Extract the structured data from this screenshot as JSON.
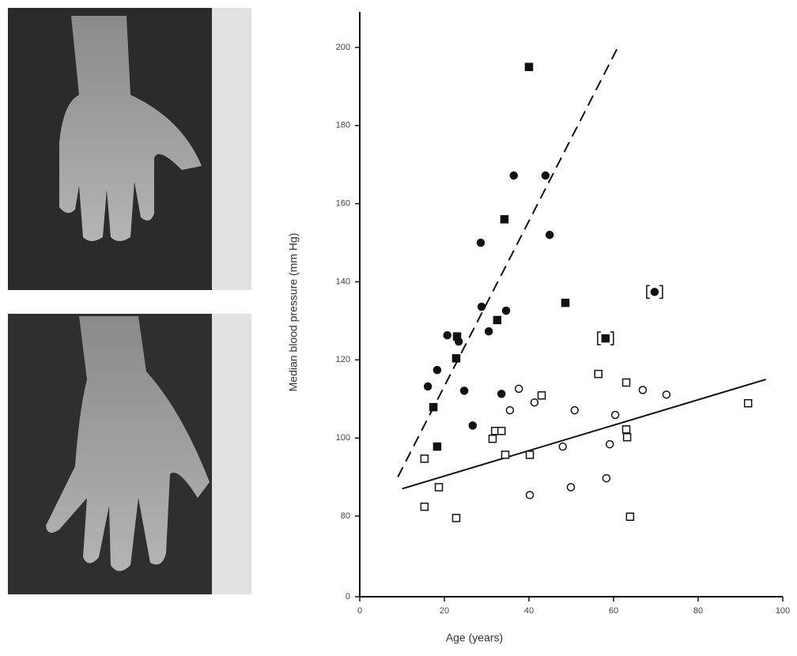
{
  "chart_data": {
    "type": "scatter",
    "x_label": "Age (years)",
    "y_label": "Median blood pressure (mm Hg)",
    "xlim": [
      0,
      100
    ],
    "xticks": [
      0,
      20,
      40,
      60,
      80,
      100
    ],
    "ylim": [
      0,
      200
    ],
    "yticks": [
      0,
      80,
      100,
      120,
      140,
      160,
      180,
      200
    ],
    "y_axis_break": [
      0,
      80
    ],
    "color": "#111111",
    "series": [
      {
        "marker": "square",
        "filled": true,
        "bracketed": false,
        "x": [
          40,
          34.2,
          48.6,
          32.5,
          23,
          22.8,
          17.4,
          18.3
        ],
        "values": [
          195,
          156,
          134.6,
          130.2,
          126,
          120.4,
          107.9,
          97.8
        ]
      },
      {
        "marker": "square",
        "filled": true,
        "bracketed": true,
        "x": [
          58.1
        ],
        "values": [
          125.5
        ]
      },
      {
        "marker": "circle",
        "filled": true,
        "bracketed": false,
        "x": [
          36.4,
          43.9,
          28.6,
          44.9,
          28.8,
          34.6,
          30.5,
          20.7,
          23.4,
          18.3,
          16.1,
          24.7,
          33.5,
          26.7
        ],
        "values": [
          167.2,
          167.2,
          150,
          152,
          133.6,
          132.6,
          127.3,
          126.3,
          124.7,
          117.4,
          113.2,
          112.1,
          111.3,
          103.2
        ]
      },
      {
        "marker": "circle",
        "filled": true,
        "bracketed": true,
        "x": [
          69.7
        ],
        "values": [
          137.4
        ]
      },
      {
        "marker": "square",
        "filled": false,
        "bracketed": false,
        "x": [
          15.3,
          18.7,
          15.3,
          22.8,
          32,
          33.5,
          31.4,
          34.4,
          40.2,
          43,
          56.4,
          63,
          63,
          63.2,
          63.9,
          91.8
        ],
        "values": [
          94.7,
          87.4,
          82.4,
          78.1,
          101.8,
          101.8,
          99.8,
          95.7,
          95.7,
          110.9,
          116.4,
          114.2,
          102.2,
          100.2,
          79.4,
          108.9
        ]
      },
      {
        "marker": "circle",
        "filled": false,
        "bracketed": false,
        "x": [
          37.6,
          35.5,
          41.3,
          50.8,
          60.4,
          66.9,
          72.5,
          48,
          59.1,
          58.3,
          40.2,
          49.9
        ],
        "values": [
          112.6,
          107.1,
          109.1,
          107.1,
          105.9,
          112.3,
          111.1,
          97.8,
          98.4,
          89.7,
          85.4,
          87.4
        ]
      }
    ],
    "lines": [
      {
        "dashed": true,
        "x": [
          9,
          61
        ],
        "values": [
          90,
          200
        ]
      },
      {
        "dashed": false,
        "x": [
          10,
          96
        ],
        "values": [
          87,
          115
        ]
      }
    ]
  }
}
